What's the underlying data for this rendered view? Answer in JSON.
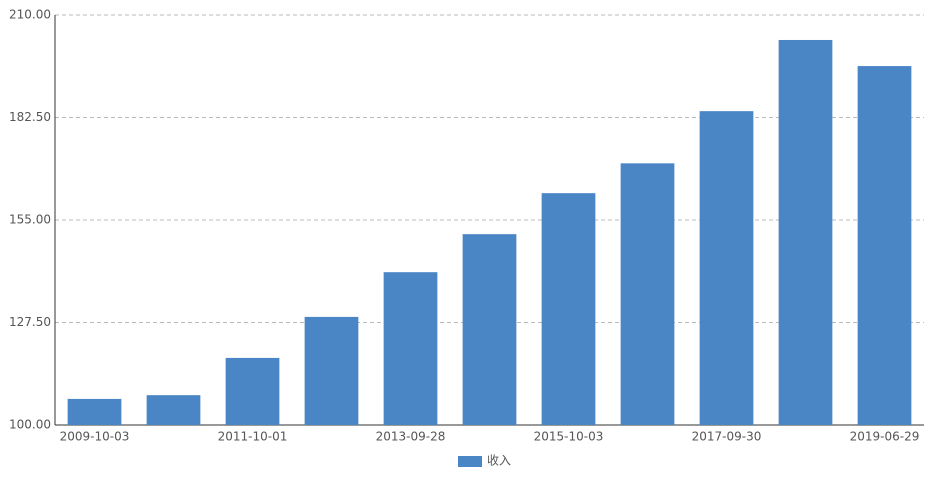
{
  "chart_data": {
    "type": "bar",
    "categories": [
      "2009-10-03",
      null,
      "2011-10-01",
      null,
      "2013-09-28",
      null,
      "2015-10-03",
      null,
      "2017-09-30",
      null,
      "2019-06-29"
    ],
    "series": [
      {
        "name": "收入",
        "color": "#4a86c6",
        "values": [
          107.0,
          108.0,
          118.0,
          129.0,
          141.0,
          151.2,
          162.2,
          170.2,
          184.2,
          203.3,
          196.3
        ]
      }
    ],
    "ylim": [
      100,
      210
    ],
    "yticks": [
      {
        "value": 100,
        "label": "100.00"
      },
      {
        "value": 127.5,
        "label": "127.50"
      },
      {
        "value": 155,
        "label": "155.00"
      },
      {
        "value": 182.5,
        "label": "182.50"
      },
      {
        "value": 210,
        "label": "210.00"
      }
    ],
    "grid": true
  }
}
